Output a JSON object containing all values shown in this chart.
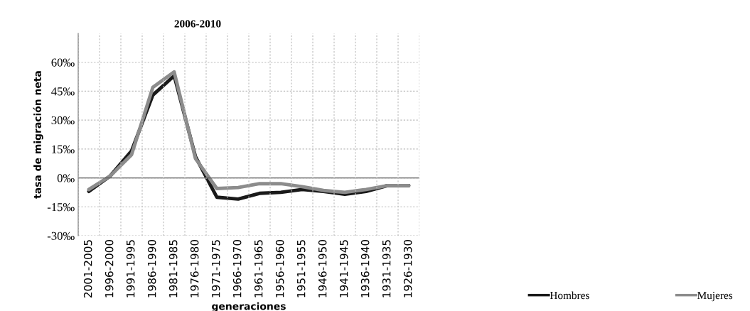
{
  "chart_data": {
    "type": "line",
    "title": "2006-2010",
    "xlabel": "generaciones",
    "ylabel": "tasa de migración neta",
    "categories": [
      "2001-2005",
      "1996-2000",
      "1991-1995",
      "1986-1990",
      "1981-1985",
      "1976-1980",
      "1971-1975",
      "1966-1970",
      "1961-1965",
      "1956-1960",
      "1951-1955",
      "1946-1950",
      "1941-1945",
      "1936-1940",
      "1931-1935",
      "1926-1930"
    ],
    "series": [
      {
        "name": "Hombres",
        "color": "#1a1a1a",
        "values": [
          -7,
          1,
          14,
          43,
          53,
          11,
          -10,
          -11,
          -8,
          -7.5,
          -6,
          -7,
          -8.5,
          -7,
          -4,
          -4
        ]
      },
      {
        "name": "Mujeres",
        "color": "#8c8c8c",
        "values": [
          -6,
          1,
          12,
          47,
          55,
          10,
          -5.5,
          -5,
          -3,
          -3,
          -4.5,
          -6.5,
          -7.5,
          -6,
          -4,
          -4
        ]
      }
    ],
    "ylim": [
      -30,
      75
    ],
    "yticks": [
      {
        "value": -30,
        "label": "-30‰"
      },
      {
        "value": -15,
        "label": "-15‰"
      },
      {
        "value": 0,
        "label": "0‰"
      },
      {
        "value": 15,
        "label": "15‰"
      },
      {
        "value": 30,
        "label": "30‰"
      },
      {
        "value": 45,
        "label": "45‰"
      },
      {
        "value": 60,
        "label": "60‰"
      }
    ],
    "grid": true,
    "legend": "bottom right",
    "marker": "none",
    "line_style": "solid"
  }
}
